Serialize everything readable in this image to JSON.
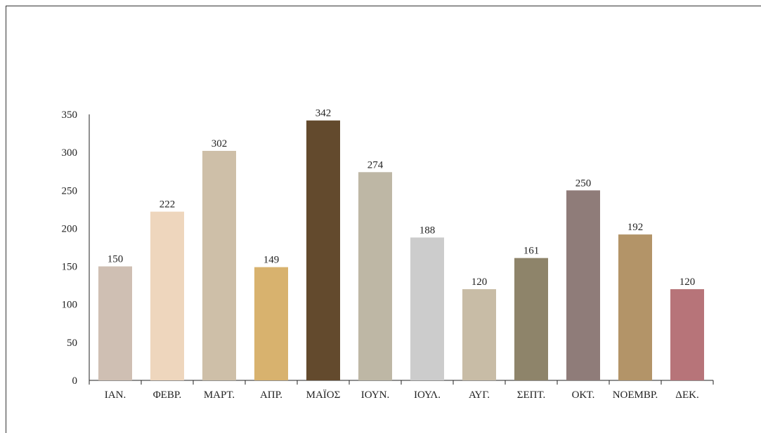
{
  "chart_data": {
    "type": "bar",
    "categories": [
      "ΙΑΝ.",
      "ΦΕΒΡ.",
      "ΜΑΡΤ.",
      "ΑΠΡ.",
      "ΜΑΪΟΣ",
      "ΙΟΥΝ.",
      "ΙΟΥΛ.",
      "ΑΥΓ.",
      "ΣΕΠΤ.",
      "ΟΚΤ.",
      "ΝΟΕΜΒΡ.",
      "ΔΕΚ."
    ],
    "values": [
      150,
      222,
      302,
      149,
      342,
      274,
      188,
      120,
      161,
      250,
      192,
      120
    ],
    "colors": [
      "#cfbfb3",
      "#eed6bd",
      "#cebfa8",
      "#d8b26e",
      "#634a2d",
      "#beb7a5",
      "#cccccc",
      "#c8bca6",
      "#8e846a",
      "#8f7c79",
      "#b39468",
      "#b77479"
    ],
    "title": "",
    "xlabel": "",
    "ylabel": "",
    "ylim": [
      0,
      350
    ],
    "yticks": [
      0,
      50,
      100,
      150,
      200,
      250,
      300,
      350
    ],
    "grid": false,
    "data_labels": true,
    "legend": "none"
  }
}
